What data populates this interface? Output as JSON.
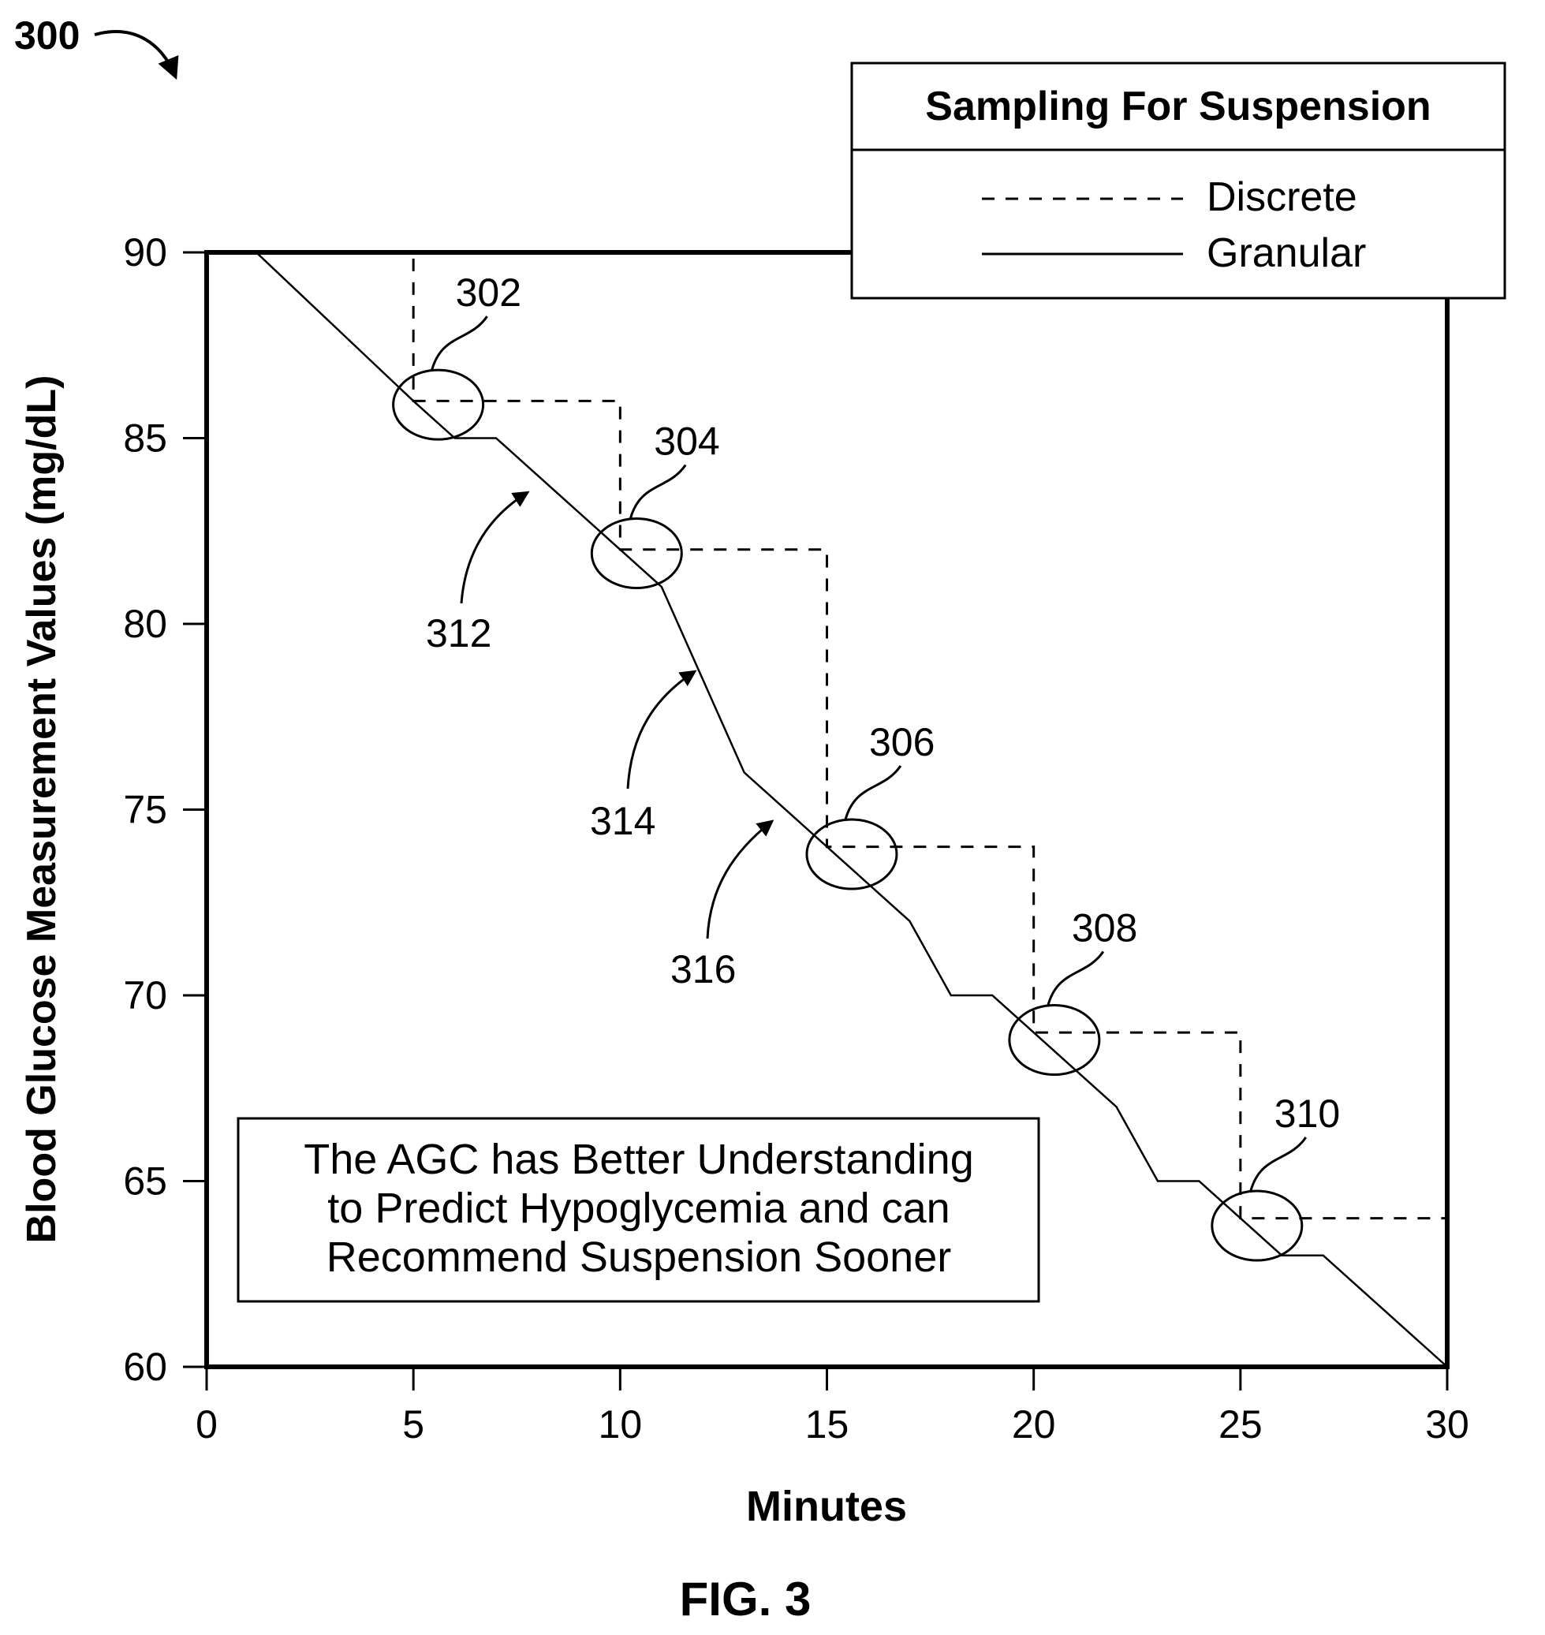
{
  "figure": {
    "ref_number": "300",
    "caption": "FIG. 3"
  },
  "chart_data": {
    "type": "line",
    "xlabel": "Minutes",
    "ylabel": "Blood Glucose Measurement Values (mg/dL)",
    "xlim": [
      0,
      30
    ],
    "ylim": [
      60,
      90
    ],
    "x_ticks": [
      0,
      5,
      10,
      15,
      20,
      25,
      30
    ],
    "y_ticks": [
      60,
      65,
      70,
      75,
      80,
      85,
      90
    ],
    "grid": false,
    "legend": {
      "title": "Sampling For Suspension",
      "placement": "top-right",
      "entries": [
        "Discrete",
        "Granular"
      ]
    },
    "series": [
      {
        "name": "Discrete",
        "style": "dashed",
        "step": true,
        "x": [
          0,
          5,
          10,
          15,
          20,
          25,
          30
        ],
        "y": [
          90,
          86,
          82,
          74,
          69,
          64,
          64
        ]
      },
      {
        "name": "Granular",
        "style": "solid",
        "x": [
          0,
          1.2,
          5,
          6,
          7,
          10,
          11,
          12,
          13,
          15,
          16,
          17,
          18,
          19,
          20,
          21,
          22,
          23,
          24,
          25,
          26,
          27,
          30
        ],
        "y": [
          90,
          90,
          86,
          85,
          85,
          82,
          81,
          78.5,
          76,
          74,
          73,
          72,
          70,
          70,
          69,
          68,
          67,
          65,
          65,
          64,
          63,
          63,
          60
        ]
      }
    ],
    "callouts": [
      {
        "label": "302",
        "x": 5.6,
        "y": 85.9
      },
      {
        "label": "304",
        "x": 10.4,
        "y": 81.9
      },
      {
        "label": "306",
        "x": 15.6,
        "y": 73.8
      },
      {
        "label": "308",
        "x": 20.5,
        "y": 68.8
      },
      {
        "label": "310",
        "x": 25.4,
        "y": 63.8
      }
    ],
    "segment_labels": [
      "312",
      "314",
      "316"
    ],
    "annotation": {
      "lines": [
        "The AGC has Better Understanding",
        "to Predict Hypoglycemia and can",
        "Recommend Suspension Sooner"
      ]
    }
  }
}
